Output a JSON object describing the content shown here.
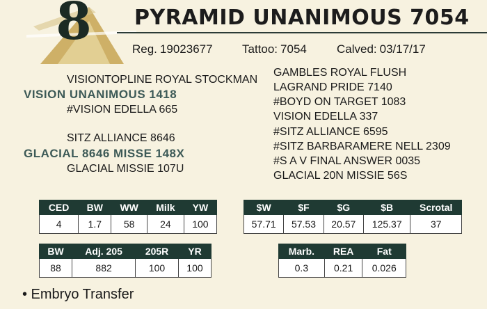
{
  "header": {
    "lot_number": "8",
    "title": "PYRAMID UNANIMOUS 7054",
    "reg_label": "Reg.",
    "reg_value": "19023677",
    "tattoo_label": "Tattoo:",
    "tattoo_value": "7054",
    "calved_label": "Calved:",
    "calved_value": "03/17/17"
  },
  "pedigree": {
    "left": [
      "VISIONTOPLINE ROYAL STOCKMAN",
      "VISION UNANIMOUS 1418",
      "#VISION EDELLA 665",
      "SITZ ALLIANCE 8646",
      "GLACIAL 8646 MISSE 148X",
      "GLACIAL MISSIE 107U"
    ],
    "right": [
      "GAMBLES ROYAL FLUSH",
      "LAGRAND PRIDE 7140",
      "#BOYD ON TARGET 1083",
      "VISION EDELLA 337",
      "#SITZ ALLIANCE 6595",
      "#SITZ BARBARAMERE NELL 2309",
      "#S A V FINAL ANSWER 0035",
      "GLACIAL 20N MISSIE 56S"
    ]
  },
  "epd": {
    "headers": [
      "CED",
      "BW",
      "WW",
      "Milk",
      "YW"
    ],
    "values": [
      "4",
      "1.7",
      "58",
      "24",
      "100"
    ]
  },
  "indexes": {
    "headers": [
      "$W",
      "$F",
      "$G",
      "$B",
      "Scrotal"
    ],
    "values": [
      "57.71",
      "57.53",
      "20.57",
      "125.37",
      "37"
    ]
  },
  "actual": {
    "headers": [
      "BW",
      "Adj. 205",
      "205R",
      "YR"
    ],
    "values": [
      "88",
      "882",
      "100",
      "100"
    ]
  },
  "carcass": {
    "headers": [
      "Marb.",
      "REA",
      "Fat"
    ],
    "values": [
      "0.3",
      "0.21",
      "0.026"
    ]
  },
  "notes": [
    "• Embryo Transfer"
  ],
  "colors": {
    "header_fill": "#1f3a33",
    "background": "#f7f2e0",
    "highlight_text": "#3d5a57",
    "logo_gold": "#c9a95a"
  }
}
